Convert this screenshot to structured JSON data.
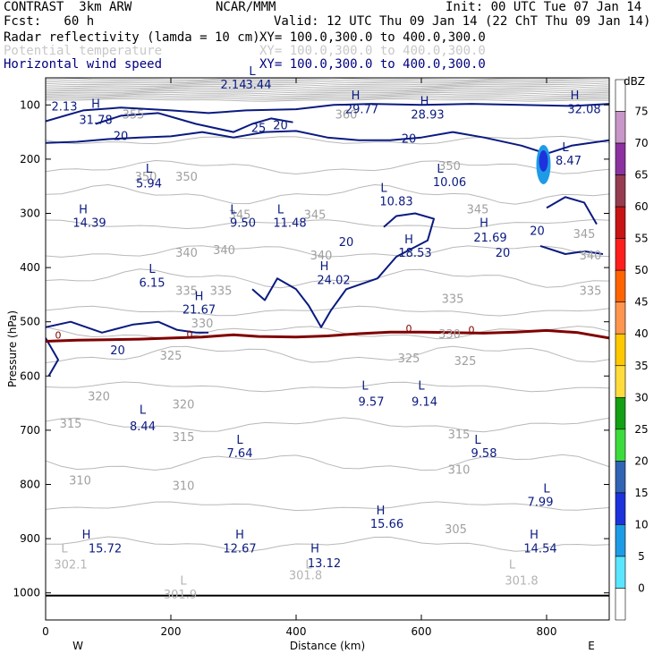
{
  "header": {
    "title": "CONTRAST  3km ARW",
    "org": "NCAR/MMM",
    "init": "Init: 00 UTC Tue 07 Jan 14",
    "fcst": "Fcst:   60 h",
    "valid": "Valid: 12 UTC Thu 09 Jan 14 (22 ChT Thu 09 Jan 14)",
    "fields": [
      {
        "name": "Radar reflectivity (lamda = 10 cm)",
        "xy": "XY= 100.0,300.0 to 400.0,300.0",
        "color": "#000000"
      },
      {
        "name": "Potential temperature",
        "xy": "XY= 100.0,300.0 to 400.0,300.0",
        "color": "#c8c8c8"
      },
      {
        "name": "Horizontal wind speed",
        "xy": "XY= 100.0,300.0 to 400.0,300.0",
        "color": "#000080"
      }
    ]
  },
  "chart_data": {
    "type": "cross-section",
    "xlabel": "Distance (km)",
    "ylabel": "Pressure (hPa)",
    "xlim": [
      0,
      900
    ],
    "ylim": [
      1050,
      50
    ],
    "x_ticks": [
      "0",
      "200",
      "400",
      "600",
      "800"
    ],
    "y_ticks": [
      "100",
      "200",
      "300",
      "400",
      "500",
      "600",
      "700",
      "800",
      "900",
      "1000"
    ],
    "west_label": "W",
    "east_label": "E",
    "theta_labels": [
      {
        "x": 140,
        "p": 125,
        "text": "355"
      },
      {
        "x": 480,
        "p": 125,
        "text": "360"
      },
      {
        "x": 160,
        "p": 240,
        "text": "350"
      },
      {
        "x": 225,
        "p": 240,
        "text": "350"
      },
      {
        "x": 645,
        "p": 220,
        "text": "350"
      },
      {
        "x": 310,
        "p": 310,
        "text": "345"
      },
      {
        "x": 430,
        "p": 310,
        "text": "345"
      },
      {
        "x": 690,
        "p": 300,
        "text": "345"
      },
      {
        "x": 860,
        "p": 345,
        "text": "345"
      },
      {
        "x": 225,
        "p": 380,
        "text": "340"
      },
      {
        "x": 285,
        "p": 375,
        "text": "340"
      },
      {
        "x": 440,
        "p": 385,
        "text": "340"
      },
      {
        "x": 870,
        "p": 385,
        "text": "340"
      },
      {
        "x": 225,
        "p": 450,
        "text": "335"
      },
      {
        "x": 280,
        "p": 450,
        "text": "335"
      },
      {
        "x": 650,
        "p": 465,
        "text": "335"
      },
      {
        "x": 870,
        "p": 450,
        "text": "335"
      },
      {
        "x": 250,
        "p": 510,
        "text": "330"
      },
      {
        "x": 645,
        "p": 530,
        "text": "330"
      },
      {
        "x": 200,
        "p": 570,
        "text": "325"
      },
      {
        "x": 580,
        "p": 575,
        "text": "325"
      },
      {
        "x": 670,
        "p": 580,
        "text": "325"
      },
      {
        "x": 85,
        "p": 645,
        "text": "320"
      },
      {
        "x": 220,
        "p": 660,
        "text": "320"
      },
      {
        "x": 40,
        "p": 695,
        "text": "315"
      },
      {
        "x": 220,
        "p": 720,
        "text": "315"
      },
      {
        "x": 660,
        "p": 715,
        "text": "315"
      },
      {
        "x": 55,
        "p": 800,
        "text": "310"
      },
      {
        "x": 220,
        "p": 810,
        "text": "310"
      },
      {
        "x": 660,
        "p": 780,
        "text": "310"
      },
      {
        "x": 655,
        "p": 890,
        "text": "305"
      }
    ],
    "wind_labels": [
      {
        "x": 120,
        "p": 165,
        "text": "20"
      },
      {
        "x": 340,
        "p": 150,
        "text": "25"
      },
      {
        "x": 375,
        "p": 145,
        "text": "20"
      },
      {
        "x": 580,
        "p": 170,
        "text": "20"
      },
      {
        "x": 480,
        "p": 360,
        "text": "20"
      },
      {
        "x": 785,
        "p": 340,
        "text": "20"
      },
      {
        "x": 730,
        "p": 380,
        "text": "20"
      },
      {
        "x": 115,
        "p": 560,
        "text": "20"
      }
    ],
    "highs_lows": [
      {
        "x": 330,
        "p": 45,
        "type": "L",
        "value": "3.44",
        "vx": 340,
        "vp": 70
      },
      {
        "x": 300,
        "p": 70,
        "type": "",
        "value": "2.14"
      },
      {
        "x": 80,
        "p": 105,
        "type": "H",
        "value": "31.78",
        "vx": 80,
        "vp": 135
      },
      {
        "x": 30,
        "p": 110,
        "type": "",
        "value": "2.13"
      },
      {
        "x": 495,
        "p": 90,
        "type": "H",
        "value": "29.77",
        "vx": 505,
        "vp": 115
      },
      {
        "x": 605,
        "p": 100,
        "type": "H",
        "value": "28.93",
        "vx": 610,
        "vp": 125
      },
      {
        "x": 845,
        "p": 90,
        "type": "H",
        "value": "32.08",
        "vx": 860,
        "vp": 115
      },
      {
        "x": 830,
        "p": 185,
        "type": "L",
        "value": "8.47",
        "vx": 835,
        "vp": 210
      },
      {
        "x": 165,
        "p": 225,
        "type": "L",
        "value": "5.94",
        "vx": 165,
        "vp": 252
      },
      {
        "x": 540,
        "p": 260,
        "type": "L",
        "value": "10.83",
        "vx": 560,
        "vp": 285
      },
      {
        "x": 630,
        "p": 225,
        "type": "L",
        "value": "10.06",
        "vx": 645,
        "vp": 250
      },
      {
        "x": 60,
        "p": 300,
        "type": "H",
        "value": "14.39",
        "vx": 70,
        "vp": 325
      },
      {
        "x": 300,
        "p": 300,
        "type": "L",
        "value": "9.50",
        "vx": 315,
        "vp": 325
      },
      {
        "x": 375,
        "p": 300,
        "type": "L",
        "value": "11.48",
        "vx": 390,
        "vp": 325
      },
      {
        "x": 700,
        "p": 325,
        "type": "H",
        "value": "21.69",
        "vx": 710,
        "vp": 352
      },
      {
        "x": 580,
        "p": 355,
        "type": "H",
        "value": "18.53",
        "vx": 590,
        "vp": 380
      },
      {
        "x": 170,
        "p": 410,
        "type": "L",
        "value": "6.15",
        "vx": 170,
        "vp": 435
      },
      {
        "x": 445,
        "p": 405,
        "type": "H",
        "value": "24.02",
        "vx": 460,
        "vp": 430
      },
      {
        "x": 245,
        "p": 460,
        "type": "H",
        "value": "21.67",
        "vx": 245,
        "vp": 485
      },
      {
        "x": 510,
        "p": 625,
        "type": "L",
        "value": "9.57",
        "vx": 520,
        "vp": 655
      },
      {
        "x": 600,
        "p": 625,
        "type": "L",
        "value": "9.14",
        "vx": 605,
        "vp": 655
      },
      {
        "x": 155,
        "p": 670,
        "type": "L",
        "value": "8.44",
        "vx": 155,
        "vp": 700
      },
      {
        "x": 310,
        "p": 725,
        "type": "L",
        "value": "7.64",
        "vx": 310,
        "vp": 750
      },
      {
        "x": 690,
        "p": 725,
        "type": "L",
        "value": "9.58",
        "vx": 700,
        "vp": 750
      },
      {
        "x": 800,
        "p": 815,
        "type": "L",
        "value": "7.99",
        "vx": 790,
        "vp": 840
      },
      {
        "x": 535,
        "p": 855,
        "type": "H",
        "value": "15.66",
        "vx": 545,
        "vp": 880
      },
      {
        "x": 65,
        "p": 900,
        "type": "H",
        "value": "15.72",
        "vx": 95,
        "vp": 925
      },
      {
        "x": 310,
        "p": 900,
        "type": "H",
        "value": "12.67",
        "vx": 310,
        "vp": 925
      },
      {
        "x": 430,
        "p": 925,
        "type": "H",
        "value": "13.12",
        "vx": 445,
        "vp": 953
      },
      {
        "x": 780,
        "p": 900,
        "type": "H",
        "value": "14.54",
        "vx": 790,
        "vp": 925
      },
      {
        "x": 30,
        "p": 925,
        "type": "L",
        "value": "302.1",
        "vx": 40,
        "vp": 955,
        "color": "#b4b4b4"
      },
      {
        "x": 420,
        "p": 955,
        "type": "L",
        "value": "301.8",
        "vx": 415,
        "vp": 975,
        "color": "#b4b4b4"
      },
      {
        "x": 745,
        "p": 955,
        "type": "L",
        "value": "301.8",
        "vx": 760,
        "vp": 985,
        "color": "#b4b4b4"
      },
      {
        "x": 220,
        "p": 985,
        "type": "L",
        "value": "301.9",
        "vx": 215,
        "vp": 1010,
        "color": "#b4b4b4"
      }
    ],
    "zero_labels": [
      {
        "x": 20,
        "p": 531,
        "text": "0"
      },
      {
        "x": 230,
        "p": 529,
        "text": "0"
      },
      {
        "x": 580,
        "p": 519,
        "text": "0"
      },
      {
        "x": 680,
        "p": 521,
        "text": "0"
      }
    ],
    "zero_line": [
      [
        0,
        536
      ],
      [
        50,
        534
      ],
      [
        100,
        533
      ],
      [
        150,
        532
      ],
      [
        200,
        530
      ],
      [
        250,
        528
      ],
      [
        300,
        524
      ],
      [
        340,
        527
      ],
      [
        400,
        528
      ],
      [
        450,
        526
      ],
      [
        500,
        522
      ],
      [
        550,
        519
      ],
      [
        600,
        519
      ],
      [
        650,
        520
      ],
      [
        700,
        521
      ],
      [
        750,
        519
      ],
      [
        800,
        516
      ],
      [
        850,
        520
      ],
      [
        900,
        530
      ]
    ],
    "ground_p": 1005,
    "echo": {
      "x": 795,
      "p": 210,
      "value": 10
    },
    "colorbar": {
      "unit": "dBZ",
      "levels": [
        "75",
        "70",
        "65",
        "60",
        "55",
        "50",
        "45",
        "40",
        "35",
        "30",
        "25",
        "20",
        "15",
        "10",
        "5",
        "0"
      ],
      "colors": [
        "#ffffff",
        "#c896c8",
        "#8c32a0",
        "#963c50",
        "#c81414",
        "#ff1e1e",
        "#ff6400",
        "#ff9650",
        "#ffc800",
        "#ffdc3c",
        "#14a014",
        "#3cdc3c",
        "#3264b4",
        "#1e32dc",
        "#1e9be6",
        "#5ae6ff",
        "#ffffff"
      ]
    }
  }
}
